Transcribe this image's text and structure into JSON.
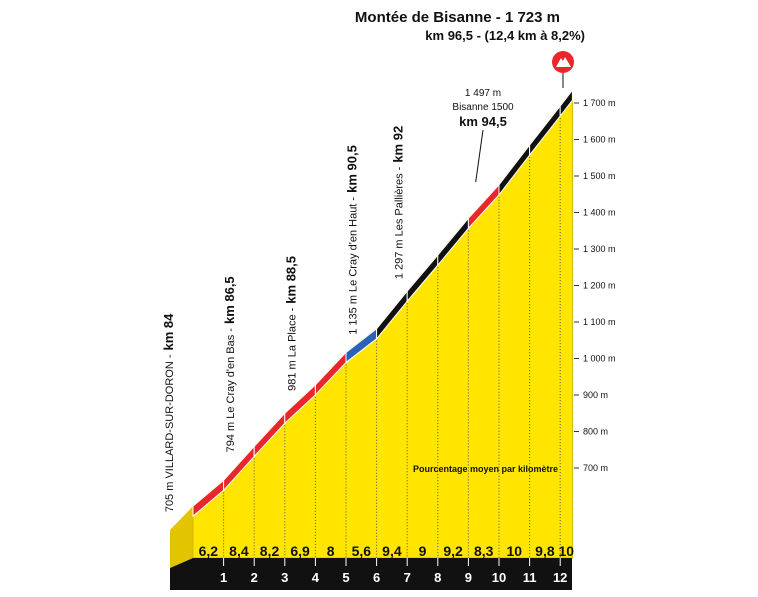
{
  "title": "Montée de Bisanne - 1 723 m",
  "subtitle": "km 96,5 - (12,4 km à 8,2%)",
  "start_altitude": 705,
  "segments": [
    {
      "length": 1,
      "gradient": 6.2,
      "label": "6,2",
      "color": "#e8262b"
    },
    {
      "length": 1,
      "gradient": 8.4,
      "label": "8,4",
      "color": "#e8262b"
    },
    {
      "length": 1,
      "gradient": 8.2,
      "label": "8,2",
      "color": "#e8262b"
    },
    {
      "length": 1,
      "gradient": 6.9,
      "label": "6,9",
      "color": "#e8262b"
    },
    {
      "length": 1,
      "gradient": 8,
      "label": "8",
      "color": "#e8262b"
    },
    {
      "length": 1,
      "gradient": 5.6,
      "label": "5,6",
      "color": "#2a62b8"
    },
    {
      "length": 1,
      "gradient": 9.4,
      "label": "9,4",
      "color": "#111111"
    },
    {
      "length": 1,
      "gradient": 9,
      "label": "9",
      "color": "#111111"
    },
    {
      "length": 1,
      "gradient": 9.2,
      "label": "9,2",
      "color": "#111111"
    },
    {
      "length": 1,
      "gradient": 8.3,
      "label": "8,3",
      "color": "#e8262b"
    },
    {
      "length": 1,
      "gradient": 10,
      "label": "10",
      "color": "#111111"
    },
    {
      "length": 1,
      "gradient": 9.8,
      "label": "9,8",
      "color": "#111111"
    },
    {
      "length": 0.4,
      "gradient": 10,
      "label": "10",
      "color": "#111111"
    }
  ],
  "km_ticks": [
    1,
    2,
    3,
    4,
    5,
    6,
    7,
    8,
    9,
    10,
    11,
    12
  ],
  "altitude_ticks": [
    {
      "value": 700,
      "label": "700 m"
    },
    {
      "value": 800,
      "label": "800 m"
    },
    {
      "value": 900,
      "label": "900 m"
    },
    {
      "value": 1000,
      "label": "1 000 m"
    },
    {
      "value": 1100,
      "label": "1 100 m"
    },
    {
      "value": 1200,
      "label": "1 200 m"
    },
    {
      "value": 1300,
      "label": "1 300 m"
    },
    {
      "value": 1400,
      "label": "1 400 m"
    },
    {
      "value": 1500,
      "label": "1 500 m"
    },
    {
      "value": 1600,
      "label": "1 600 m"
    },
    {
      "value": 1700,
      "label": "1 700 m"
    }
  ],
  "waypoints": [
    {
      "label": "705 m VILLARD-SUR-DORON -",
      "km": "km 84",
      "at": 0
    },
    {
      "label": "794 m Le Cray d'en Bas -",
      "km": "km 86,5",
      "at": 2
    },
    {
      "label": "981 m La Place -",
      "km": "km 88,5",
      "at": 4
    },
    {
      "label": "1 135 m Le Cray d'en Haut -",
      "km": "km 90,5",
      "at": 6
    },
    {
      "label": "1 297 m Les Pallières -",
      "km": "km 92",
      "at": 7.5
    }
  ],
  "summit_point": {
    "altitude": "1 497 m",
    "name": "Bisanne 1500",
    "km": "km 94,5"
  },
  "legend": "Pourcentage moyen par kilomètre"
}
